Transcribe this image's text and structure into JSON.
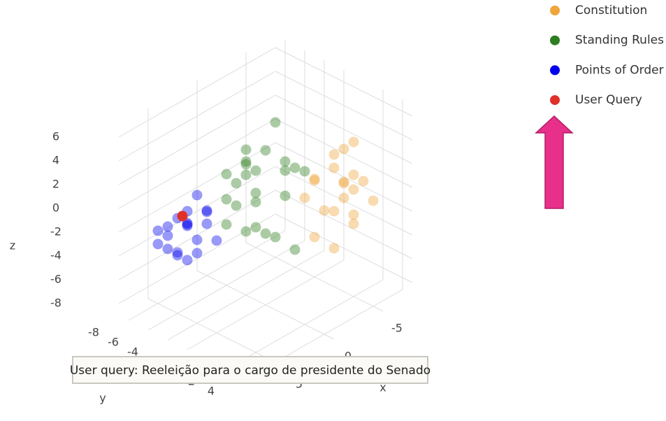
{
  "chart_data": {
    "type": "scatter3d",
    "xlabel": "x",
    "ylabel": "y",
    "zlabel": "z",
    "xlim": [
      -8,
      8
    ],
    "ylim": [
      -9,
      5
    ],
    "zlim": [
      -9,
      7
    ],
    "xticks": [
      -5,
      0,
      5
    ],
    "yticks": [
      -8,
      -6,
      -4,
      -2,
      2,
      4
    ],
    "zticks": [
      6,
      4,
      2,
      0,
      -2,
      -4,
      -6,
      -8
    ],
    "grid": true,
    "legend": "top-right",
    "opacity": 0.4,
    "annotation": "User query: Reeleição para o cargo de presidente do Senado",
    "series": [
      {
        "name": "Constitution",
        "color": "#f0a43c",
        "x": [
          -5,
          -4,
          -6,
          -3,
          -4,
          -5,
          -2,
          -3,
          -6,
          -4,
          -5,
          -3,
          -4,
          -2,
          -5,
          -6,
          -3,
          -4,
          -5,
          -3
        ],
        "y": [
          1,
          2,
          0,
          3,
          -1,
          2,
          1,
          0,
          3,
          4,
          -1,
          2,
          1,
          3,
          0,
          1,
          -1,
          3,
          2,
          4
        ],
        "z": [
          3,
          1,
          -2,
          2,
          0,
          4,
          -3,
          1,
          -1,
          2,
          -3,
          -4,
          3,
          0,
          1,
          -3,
          -1,
          -2,
          0,
          3
        ]
      },
      {
        "name": "Standing Rules",
        "color": "#2e7d1f",
        "x": [
          0,
          1,
          -1,
          2,
          0,
          1,
          -2,
          3,
          0,
          -1,
          1,
          2,
          0,
          -1,
          2,
          1,
          0,
          -2,
          3,
          1,
          -1,
          0,
          2,
          1
        ],
        "y": [
          -2,
          -3,
          -1,
          -4,
          0,
          -2,
          -3,
          -1,
          -4,
          1,
          -5,
          -2,
          -3,
          0,
          -1,
          -4,
          -2,
          -1,
          -3,
          0,
          -4,
          -5,
          -2,
          1
        ],
        "z": [
          4,
          2,
          3,
          0,
          1,
          -2,
          5,
          -1,
          2,
          3,
          -3,
          4,
          0,
          -4,
          1,
          -1,
          -3,
          2,
          3,
          -2,
          1,
          0,
          5,
          4
        ]
      },
      {
        "name": "Points of Order",
        "color": "#0000ee",
        "x": [
          4,
          5,
          3,
          4,
          6,
          5,
          3,
          4,
          5,
          6,
          4,
          3,
          5,
          4,
          6,
          3,
          5,
          4,
          3,
          5
        ],
        "y": [
          -6,
          -5,
          -7,
          -4,
          -6,
          -7,
          -5,
          -8,
          -4,
          -5,
          -7,
          -6,
          -6,
          -5,
          -7,
          -4,
          -8,
          -6,
          -5,
          -5
        ],
        "z": [
          -2,
          -1,
          -3,
          0,
          -2,
          -4,
          -1,
          -3,
          -2,
          -3,
          -5,
          0,
          -1,
          -4,
          -2,
          -3,
          -4,
          -5,
          -2,
          0
        ]
      },
      {
        "name": "User Query",
        "color": "#e0302a",
        "x": [
          4
        ],
        "y": [
          -6.5
        ],
        "z": [
          -1.5
        ]
      }
    ]
  }
}
